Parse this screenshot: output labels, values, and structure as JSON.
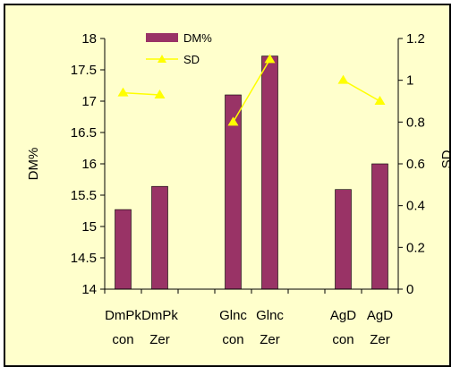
{
  "chart_data": {
    "type": "bar",
    "title": "",
    "categories": [
      [
        "DmPk",
        "con"
      ],
      [
        "DmPk",
        "Zer"
      ],
      [
        "",
        ""
      ],
      [
        "Glnc",
        "con"
      ],
      [
        "Glnc",
        "Zer"
      ],
      [
        "",
        ""
      ],
      [
        "AgD",
        "con"
      ],
      [
        "AgD",
        "Zer"
      ]
    ],
    "ylabel": "DM%",
    "y2label": "SD",
    "ylim": [
      14,
      18
    ],
    "y2lim": [
      0,
      1.2
    ],
    "yticks": [
      "14",
      "14.5",
      "15",
      "15.5",
      "16",
      "16.5",
      "17",
      "17.5",
      "18"
    ],
    "y2ticks": [
      "0",
      "0.2",
      "0.4",
      "0.6",
      "0.8",
      "1",
      "1.2"
    ],
    "series": [
      {
        "name": "DM%",
        "type": "bar",
        "axis": "left",
        "color": "#993366",
        "values": [
          15.27,
          15.64,
          null,
          17.1,
          17.72,
          null,
          15.59,
          16.0
        ]
      },
      {
        "name": "SD",
        "type": "line",
        "axis": "right",
        "color": "#ffff00",
        "values": [
          0.94,
          0.93,
          null,
          0.8,
          1.1,
          null,
          1.0,
          0.9
        ]
      }
    ],
    "legend_position": "top-left",
    "grid": false
  }
}
